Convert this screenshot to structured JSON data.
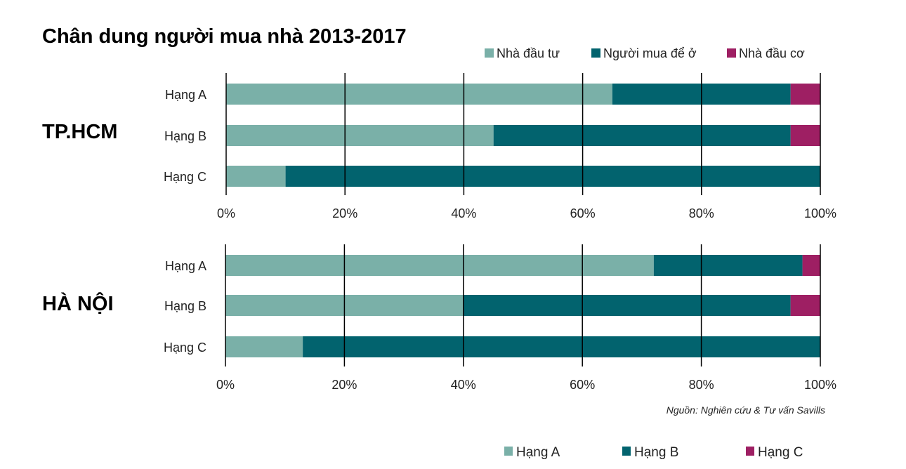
{
  "colors": {
    "investor": "#7ab0a8",
    "owner": "#02636e",
    "speculator": "#9e1f63"
  },
  "chart_data": {
    "type": "bar",
    "stacked": true,
    "orientation": "horizontal",
    "title": "Chân dung người mua nhà 2013-2017",
    "legend_top": [
      "Nhà đầu tư",
      "Người mua để ở",
      "Nhà đầu cơ"
    ],
    "legend_bottom": [
      "Hạng A",
      "Hạng B",
      "Hạng C"
    ],
    "xlim": [
      0,
      100
    ],
    "ticks": [
      "0%",
      "20%",
      "40%",
      "60%",
      "80%",
      "100%"
    ],
    "source": "Nguồn: Nghiên cứu & Tư vấn Savills",
    "panels": [
      {
        "name": "TP.HCM",
        "categories": [
          "Hạng A",
          "Hạng B",
          "Hạng C"
        ],
        "series": [
          {
            "name": "Nhà đầu tư",
            "values": [
              65,
              45,
              10
            ]
          },
          {
            "name": "Người mua để ở",
            "values": [
              30,
              50,
              90
            ]
          },
          {
            "name": "Nhà đầu cơ",
            "values": [
              5,
              5,
              0
            ]
          }
        ]
      },
      {
        "name": "HÀ NỘI",
        "categories": [
          "Hạng A",
          "Hạng B",
          "Hạng C"
        ],
        "series": [
          {
            "name": "Nhà đầu tư",
            "values": [
              72,
              40,
              13
            ]
          },
          {
            "name": "Người mua để ở",
            "values": [
              25,
              55,
              87
            ]
          },
          {
            "name": "Nhà đầu cơ",
            "values": [
              3,
              5,
              0
            ]
          }
        ]
      }
    ]
  }
}
